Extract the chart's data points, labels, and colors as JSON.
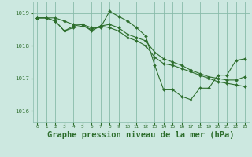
{
  "background_color": "#cce8e0",
  "plot_bg_color": "#cce8e0",
  "grid_color": "#88bbaa",
  "line_color": "#2d6e2d",
  "marker_color": "#2d6e2d",
  "title": "Graphe pression niveau de la mer (hPa)",
  "title_fontsize": 7.5,
  "xlim": [
    -0.5,
    23.5
  ],
  "ylim": [
    1015.65,
    1019.35
  ],
  "yticks": [
    1016,
    1017,
    1018,
    1019
  ],
  "xticks": [
    0,
    1,
    2,
    3,
    4,
    5,
    6,
    7,
    8,
    9,
    10,
    11,
    12,
    13,
    14,
    15,
    16,
    17,
    18,
    19,
    20,
    21,
    22,
    23
  ],
  "series": [
    [
      1018.85,
      1018.85,
      1018.85,
      1018.75,
      1018.65,
      1018.65,
      1018.55,
      1018.55,
      1019.05,
      1018.9,
      1018.75,
      1018.55,
      1018.3,
      1017.4,
      1016.65,
      1016.65,
      1016.45,
      1016.35,
      1016.7,
      1016.7,
      1017.1,
      1017.1,
      1017.55,
      1017.6
    ],
    [
      1018.85,
      1018.85,
      1018.75,
      1018.45,
      1018.6,
      1018.65,
      1018.45,
      1018.6,
      1018.65,
      1018.55,
      1018.35,
      1018.25,
      1018.15,
      1017.8,
      1017.6,
      1017.5,
      1017.4,
      1017.25,
      1017.15,
      1017.05,
      1017.0,
      1016.95,
      1016.95,
      1017.05
    ],
    [
      1018.85,
      1018.85,
      1018.75,
      1018.45,
      1018.55,
      1018.6,
      1018.5,
      1018.6,
      1018.55,
      1018.45,
      1018.25,
      1018.15,
      1018.0,
      1017.65,
      1017.45,
      1017.4,
      1017.3,
      1017.2,
      1017.1,
      1017.0,
      1016.9,
      1016.85,
      1016.8,
      1016.75
    ]
  ]
}
